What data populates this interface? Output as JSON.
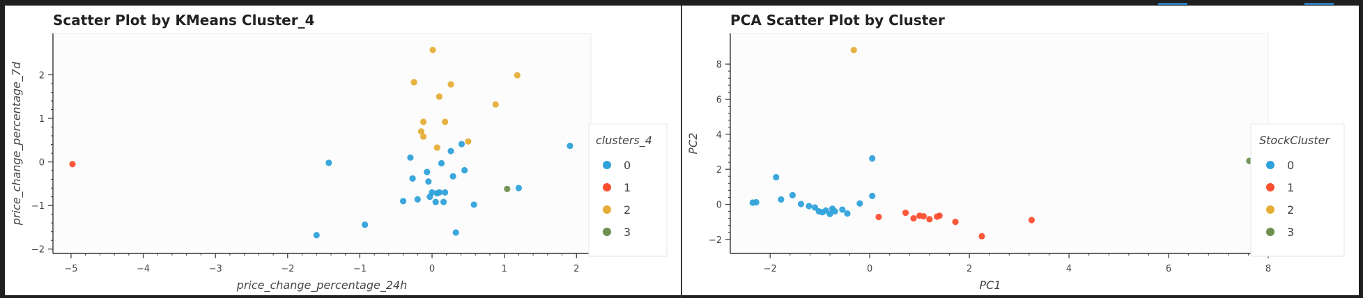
{
  "colors": {
    "cluster_0": "#30a2da",
    "cluster_1": "#fc4f30",
    "cluster_2": "#e5ae38",
    "cluster_3": "#6d904f"
  },
  "chart_data": [
    {
      "type": "scatter",
      "title": "Scatter Plot by KMeans Cluster_4",
      "xlabel": "price_change_percentage_24h",
      "ylabel": "price_change_percentage_7d",
      "xlim": [
        -5.25,
        2.2
      ],
      "ylim": [
        -2.1,
        2.95
      ],
      "xticks": [
        "−5",
        "−4",
        "−3",
        "−2",
        "−1",
        "0",
        "1",
        "2"
      ],
      "yticks": [
        "−2",
        "−1",
        "0",
        "1",
        "2"
      ],
      "legend_title": "clusters_4",
      "legend_labels": [
        "0",
        "1",
        "2",
        "3"
      ],
      "legend_position": "right",
      "grid": false,
      "points": [
        {
          "x": -1.6,
          "y": -1.68,
          "c": 0
        },
        {
          "x": -1.43,
          "y": -0.02,
          "c": 0
        },
        {
          "x": -0.93,
          "y": -1.44,
          "c": 0
        },
        {
          "x": -0.4,
          "y": -0.9,
          "c": 0
        },
        {
          "x": -0.3,
          "y": 0.1,
          "c": 0
        },
        {
          "x": -0.27,
          "y": -0.38,
          "c": 0
        },
        {
          "x": -0.2,
          "y": -0.86,
          "c": 0
        },
        {
          "x": -0.07,
          "y": -0.23,
          "c": 0
        },
        {
          "x": -0.05,
          "y": -0.45,
          "c": 0
        },
        {
          "x": -0.03,
          "y": -0.8,
          "c": 0
        },
        {
          "x": 0.0,
          "y": -0.7,
          "c": 0
        },
        {
          "x": 0.05,
          "y": -0.92,
          "c": 0
        },
        {
          "x": 0.07,
          "y": -0.72,
          "c": 0
        },
        {
          "x": 0.1,
          "y": -0.7,
          "c": 0
        },
        {
          "x": 0.13,
          "y": -0.03,
          "c": 0
        },
        {
          "x": 0.16,
          "y": -0.92,
          "c": 0
        },
        {
          "x": 0.18,
          "y": -0.7,
          "c": 0
        },
        {
          "x": 0.26,
          "y": 0.25,
          "c": 0
        },
        {
          "x": 0.29,
          "y": -0.33,
          "c": 0
        },
        {
          "x": 0.33,
          "y": -1.62,
          "c": 0
        },
        {
          "x": 0.41,
          "y": 0.41,
          "c": 0
        },
        {
          "x": 0.45,
          "y": -0.19,
          "c": 0
        },
        {
          "x": 0.58,
          "y": -0.98,
          "c": 0
        },
        {
          "x": 1.2,
          "y": -0.6,
          "c": 0
        },
        {
          "x": 1.91,
          "y": 0.37,
          "c": 0
        },
        {
          "x": -4.98,
          "y": -0.05,
          "c": 1
        },
        {
          "x": 0.01,
          "y": 2.57,
          "c": 2
        },
        {
          "x": -0.25,
          "y": 1.83,
          "c": 2
        },
        {
          "x": 0.26,
          "y": 1.78,
          "c": 2
        },
        {
          "x": 1.18,
          "y": 1.99,
          "c": 2
        },
        {
          "x": 0.1,
          "y": 1.5,
          "c": 2
        },
        {
          "x": 0.88,
          "y": 1.32,
          "c": 2
        },
        {
          "x": -0.12,
          "y": 0.92,
          "c": 2
        },
        {
          "x": 0.18,
          "y": 0.92,
          "c": 2
        },
        {
          "x": -0.15,
          "y": 0.7,
          "c": 2
        },
        {
          "x": -0.12,
          "y": 0.58,
          "c": 2
        },
        {
          "x": 0.5,
          "y": 0.47,
          "c": 2
        },
        {
          "x": 0.07,
          "y": 0.33,
          "c": 2
        },
        {
          "x": 1.04,
          "y": -0.62,
          "c": 3
        }
      ]
    },
    {
      "type": "scatter",
      "title": "PCA Scatter Plot by Cluster",
      "xlabel": "PC1",
      "ylabel": "PC2",
      "xlim": [
        -2.8,
        8.0
      ],
      "ylim": [
        -2.8,
        9.75
      ],
      "xticks": [
        "−2",
        "0",
        "2",
        "4",
        "6",
        "8"
      ],
      "yticks": [
        "−2",
        "0",
        "2",
        "4",
        "6",
        "8"
      ],
      "legend_title": "StockCluster",
      "legend_labels": [
        "0",
        "1",
        "2",
        "3"
      ],
      "legend_position": "right",
      "grid": false,
      "points": [
        {
          "x": -2.35,
          "y": 0.1,
          "c": 0
        },
        {
          "x": -2.28,
          "y": 0.12,
          "c": 0
        },
        {
          "x": -1.88,
          "y": 1.55,
          "c": 0
        },
        {
          "x": -1.78,
          "y": 0.28,
          "c": 0
        },
        {
          "x": -1.55,
          "y": 0.52,
          "c": 0
        },
        {
          "x": -1.38,
          "y": 0.02,
          "c": 0
        },
        {
          "x": -1.22,
          "y": -0.1,
          "c": 0
        },
        {
          "x": -1.1,
          "y": -0.18,
          "c": 0
        },
        {
          "x": -1.02,
          "y": -0.4,
          "c": 0
        },
        {
          "x": -0.95,
          "y": -0.45,
          "c": 0
        },
        {
          "x": -0.88,
          "y": -0.35,
          "c": 0
        },
        {
          "x": -0.8,
          "y": -0.55,
          "c": 0
        },
        {
          "x": -0.75,
          "y": -0.25,
          "c": 0
        },
        {
          "x": -0.7,
          "y": -0.4,
          "c": 0
        },
        {
          "x": -0.55,
          "y": -0.3,
          "c": 0
        },
        {
          "x": -0.45,
          "y": -0.52,
          "c": 0
        },
        {
          "x": -0.2,
          "y": 0.05,
          "c": 0
        },
        {
          "x": 0.05,
          "y": 2.62,
          "c": 0
        },
        {
          "x": 0.05,
          "y": 0.48,
          "c": 0
        },
        {
          "x": 0.18,
          "y": -0.72,
          "c": 1
        },
        {
          "x": 0.72,
          "y": -0.48,
          "c": 1
        },
        {
          "x": 0.88,
          "y": -0.8,
          "c": 1
        },
        {
          "x": 1.0,
          "y": -0.65,
          "c": 1
        },
        {
          "x": 1.08,
          "y": -0.68,
          "c": 1
        },
        {
          "x": 1.2,
          "y": -0.85,
          "c": 1
        },
        {
          "x": 1.35,
          "y": -0.7,
          "c": 1
        },
        {
          "x": 1.4,
          "y": -0.65,
          "c": 1
        },
        {
          "x": 1.72,
          "y": -1.0,
          "c": 1
        },
        {
          "x": 2.25,
          "y": -1.82,
          "c": 1
        },
        {
          "x": 3.25,
          "y": -0.9,
          "c": 1
        },
        {
          "x": -0.32,
          "y": 8.8,
          "c": 2
        },
        {
          "x": 7.62,
          "y": 2.48,
          "c": 3
        }
      ]
    }
  ]
}
